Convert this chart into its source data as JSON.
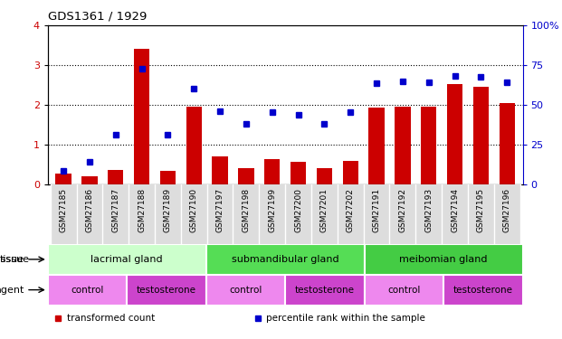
{
  "title": "GDS1361 / 1929",
  "samples": [
    "GSM27185",
    "GSM27186",
    "GSM27187",
    "GSM27188",
    "GSM27189",
    "GSM27190",
    "GSM27197",
    "GSM27198",
    "GSM27199",
    "GSM27200",
    "GSM27201",
    "GSM27202",
    "GSM27191",
    "GSM27192",
    "GSM27193",
    "GSM27194",
    "GSM27195",
    "GSM27196"
  ],
  "transformed_count": [
    0.28,
    0.22,
    0.38,
    3.42,
    0.36,
    1.97,
    0.72,
    0.42,
    0.65,
    0.58,
    0.42,
    0.6,
    1.93,
    1.95,
    1.95,
    2.52,
    2.47,
    2.05
  ],
  "percentile_rank": [
    8.5,
    14.5,
    31.5,
    73.0,
    31.5,
    60.5,
    46.0,
    38.5,
    45.5,
    44.0,
    38.5,
    45.5,
    64.0,
    65.0,
    64.5,
    68.5,
    67.5,
    64.5
  ],
  "bar_color": "#cc0000",
  "dot_color": "#0000cc",
  "ylim_left": [
    0,
    4
  ],
  "ylim_right": [
    0,
    100
  ],
  "yticks_left": [
    0,
    1,
    2,
    3,
    4
  ],
  "yticks_right": [
    0,
    25,
    50,
    75,
    100
  ],
  "tissue_groups": [
    {
      "label": "lacrimal gland",
      "start": 0,
      "end": 6,
      "color": "#ccffcc"
    },
    {
      "label": "submandibular gland",
      "start": 6,
      "end": 12,
      "color": "#55dd55"
    },
    {
      "label": "meibomian gland",
      "start": 12,
      "end": 18,
      "color": "#44cc44"
    }
  ],
  "agent_groups": [
    {
      "label": "control",
      "start": 0,
      "end": 3,
      "color": "#ee88ee"
    },
    {
      "label": "testosterone",
      "start": 3,
      "end": 6,
      "color": "#cc44cc"
    },
    {
      "label": "control",
      "start": 6,
      "end": 9,
      "color": "#ee88ee"
    },
    {
      "label": "testosterone",
      "start": 9,
      "end": 12,
      "color": "#cc44cc"
    },
    {
      "label": "control",
      "start": 12,
      "end": 15,
      "color": "#ee88ee"
    },
    {
      "label": "testosterone",
      "start": 15,
      "end": 18,
      "color": "#cc44cc"
    }
  ],
  "legend_items": [
    {
      "label": "transformed count",
      "color": "#cc0000"
    },
    {
      "label": "percentile rank within the sample",
      "color": "#0000cc"
    }
  ],
  "right_axis_color": "#0000cc",
  "left_axis_color": "#cc0000",
  "xtick_bg_color": "#dddddd",
  "chart_bg_color": "#ffffff"
}
